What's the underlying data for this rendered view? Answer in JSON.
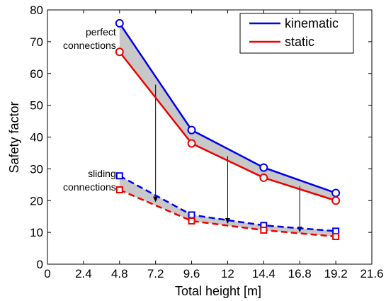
{
  "chart_data": {
    "type": "line",
    "xlabel": "Total height [m]",
    "ylabel": "Safety factor",
    "xlim": [
      0,
      21.6
    ],
    "ylim": [
      0,
      80
    ],
    "xticks": [
      "0",
      "2.4",
      "4.8",
      "7.2",
      "9.6",
      "12",
      "14.4",
      "16.8",
      "19.2",
      "21.6"
    ],
    "yticks": [
      "0",
      "10",
      "20",
      "30",
      "40",
      "50",
      "60",
      "70",
      "80"
    ],
    "x": [
      4.8,
      9.6,
      14.4,
      19.2
    ],
    "series": [
      {
        "name": "kinematic",
        "group": "perfect connections",
        "values": [
          75.8,
          42.2,
          30.4,
          22.4
        ],
        "color": "#0000ee",
        "marker": "circle",
        "dash": false
      },
      {
        "name": "static",
        "group": "perfect connections",
        "values": [
          66.8,
          38.0,
          27.2,
          20.0
        ],
        "color": "#ee0000",
        "marker": "circle",
        "dash": false
      },
      {
        "name": "kinematic",
        "group": "sliding connections",
        "values": [
          27.8,
          15.5,
          12.2,
          10.4
        ],
        "color": "#0000ee",
        "marker": "square",
        "dash": true
      },
      {
        "name": "static",
        "group": "sliding connections",
        "values": [
          23.4,
          13.6,
          10.7,
          8.7
        ],
        "color": "#ee0000",
        "marker": "square",
        "dash": true
      }
    ],
    "fill_color": "#c8c8c8",
    "arrows": [
      {
        "x": 7.2,
        "from": 56.5,
        "to": 19.5
      },
      {
        "x": 12.0,
        "from": 34.0,
        "to": 12.7
      },
      {
        "x": 16.8,
        "from": 24.5,
        "to": 10.0
      }
    ],
    "annotations": [
      {
        "lines": [
          "perfect",
          "connections"
        ]
      },
      {
        "lines": [
          "sliding",
          "connections"
        ]
      }
    ],
    "legend": {
      "position": "top-right",
      "entries": [
        {
          "label": "kinematic",
          "color": "#0000ee"
        },
        {
          "label": "static",
          "color": "#ee0000"
        }
      ]
    },
    "grid": false
  }
}
